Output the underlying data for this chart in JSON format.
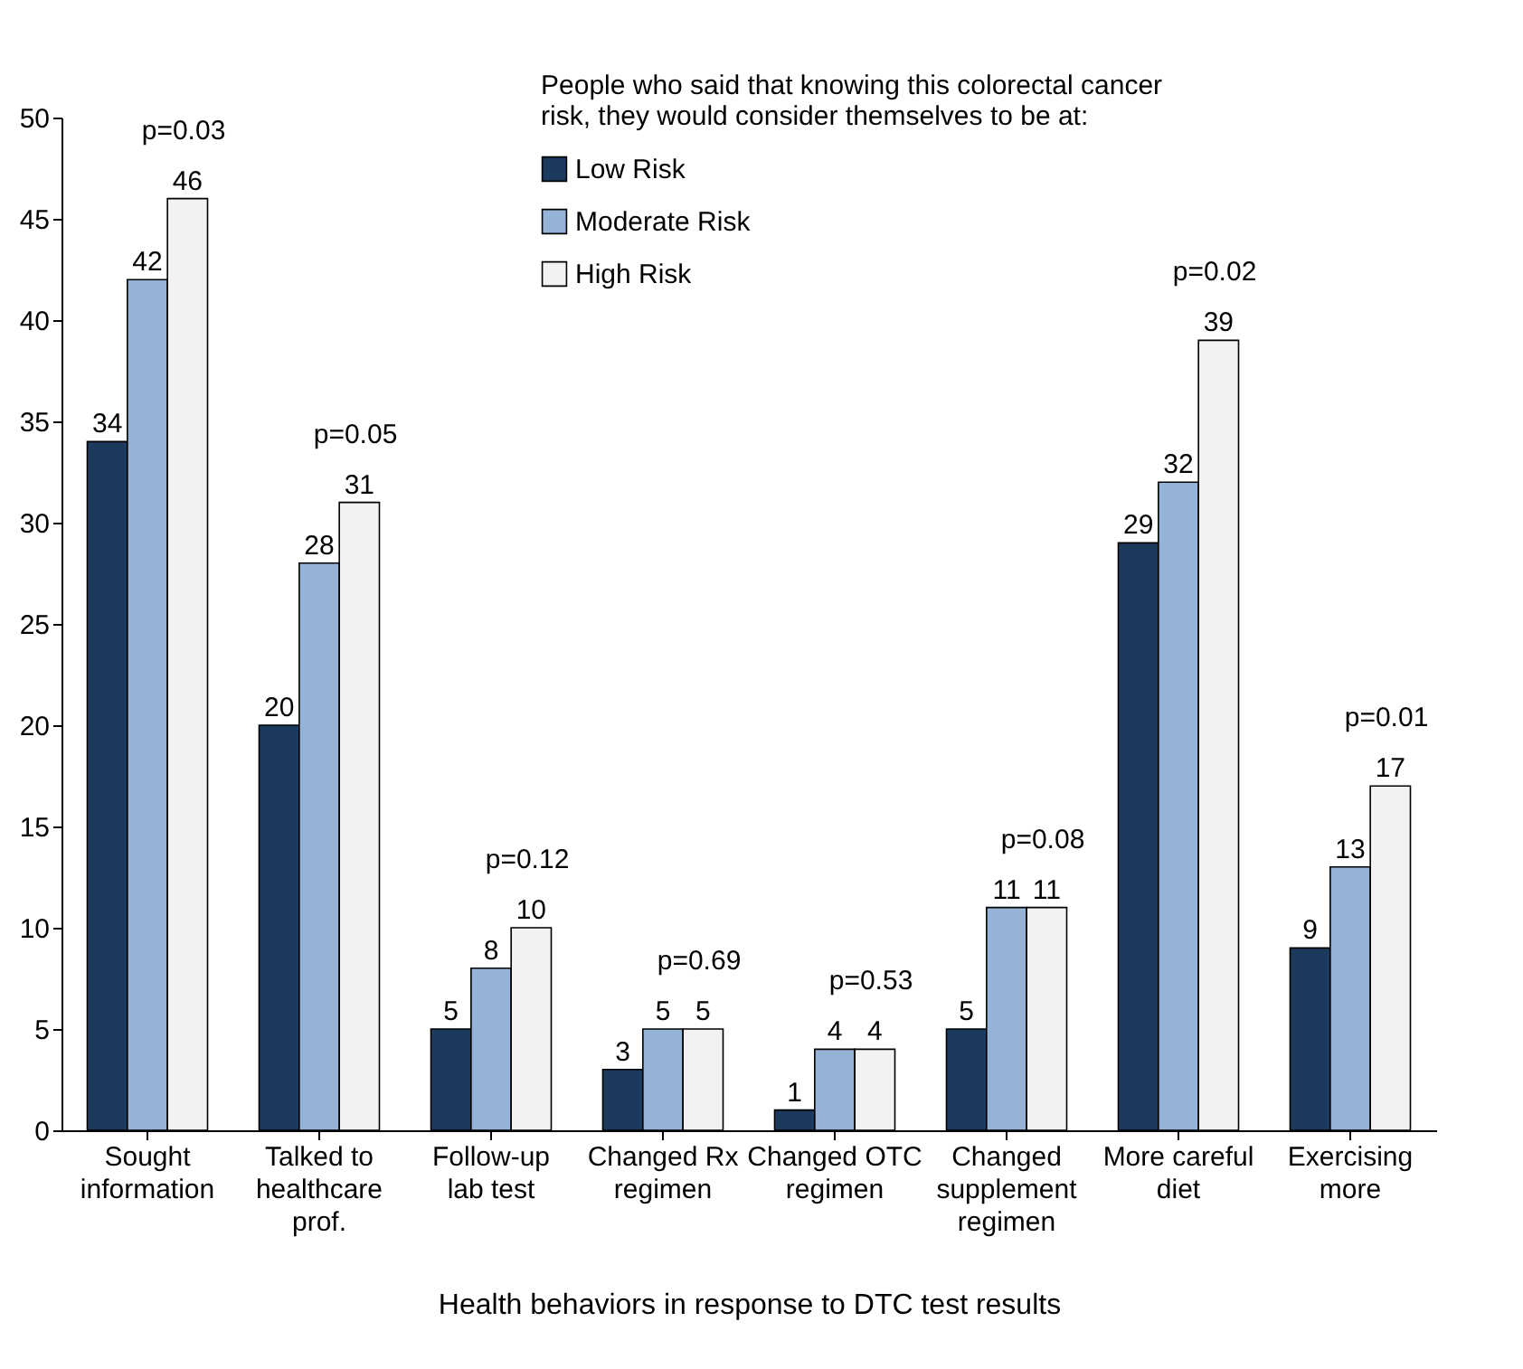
{
  "chart_data": {
    "type": "bar",
    "xlabel": "Health behaviors in response to DTC test results",
    "legend_title": "People who said that knowing this colorectal cancer risk, they would consider themselves to be at:",
    "categories": [
      "Sought information",
      "Talked to healthcare prof.",
      "Follow-up lab test",
      "Changed Rx regimen",
      "Changed OTC regimen",
      "Changed supplement regimen",
      "More careful diet",
      "Exercising more"
    ],
    "series": [
      {
        "name": "Low Risk",
        "color": "#1c3a5e",
        "values": [
          34,
          20,
          5,
          3,
          1,
          5,
          29,
          9
        ]
      },
      {
        "name": "Moderate Risk",
        "color": "#95b3d7",
        "values": [
          42,
          28,
          8,
          5,
          4,
          11,
          32,
          13
        ]
      },
      {
        "name": "High Risk",
        "color": "#f2f2f2",
        "values": [
          46,
          31,
          10,
          5,
          4,
          11,
          39,
          17
        ]
      }
    ],
    "ylim": [
      0,
      50
    ],
    "yticks": [
      0,
      5,
      10,
      15,
      20,
      25,
      30,
      35,
      40,
      45,
      50
    ],
    "data_labels": true,
    "grid": false,
    "legend": "top",
    "annotations": [
      "p=0.03",
      "p=0.05",
      "p=0.12",
      "p=0.69",
      "p=0.53",
      "p=0.08",
      "p=0.02",
      "p=0.01"
    ]
  }
}
